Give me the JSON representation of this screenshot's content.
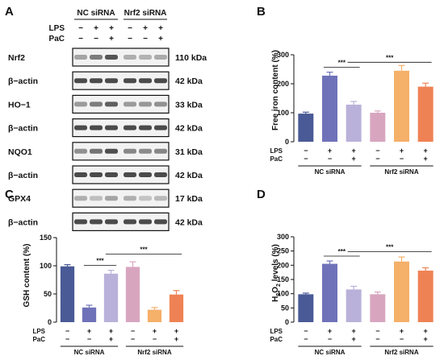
{
  "panel_a": {
    "letter": "A",
    "group_labels": [
      "NC siRNA",
      "Nrf2 siRNA"
    ],
    "row_labels": [
      "LPS",
      "PaC"
    ],
    "treatments": {
      "LPS": [
        "−",
        "+",
        "+",
        "−",
        "+",
        "+"
      ],
      "PaC": [
        "−",
        "−",
        "+",
        "−",
        "−",
        "+"
      ]
    },
    "blots": [
      {
        "protein": "Nrf2",
        "size": "110 kDa",
        "intensity": [
          0.35,
          0.55,
          0.75,
          0.3,
          0.28,
          0.32
        ]
      },
      {
        "protein": "β−actin",
        "size": "42 kDa",
        "intensity": [
          0.8,
          0.8,
          0.8,
          0.8,
          0.8,
          0.8
        ]
      },
      {
        "protein": "HO−1",
        "size": "33 kDa",
        "intensity": [
          0.4,
          0.55,
          0.7,
          0.4,
          0.42,
          0.45
        ]
      },
      {
        "protein": "β−actin",
        "size": "42 kDa",
        "intensity": [
          0.8,
          0.8,
          0.8,
          0.8,
          0.8,
          0.8
        ]
      },
      {
        "protein": "NQO1",
        "size": "31 kDa",
        "intensity": [
          0.45,
          0.6,
          0.78,
          0.5,
          0.48,
          0.5
        ]
      },
      {
        "protein": "β−actin",
        "size": "42 kDa",
        "intensity": [
          0.8,
          0.8,
          0.8,
          0.8,
          0.8,
          0.8
        ]
      },
      {
        "protein": "GPX4",
        "size": "17 kDa",
        "intensity": [
          0.3,
          0.22,
          0.35,
          0.3,
          0.2,
          0.25
        ]
      },
      {
        "protein": "β−actin",
        "size": "42 kDa",
        "intensity": [
          0.8,
          0.8,
          0.8,
          0.8,
          0.8,
          0.8
        ]
      }
    ]
  },
  "colors": [
    "#4a5a96",
    "#6f72b8",
    "#b9b1d9",
    "#d8a5bf",
    "#f5b06a",
    "#ef8254"
  ],
  "chart_data": [
    {
      "type": "bar",
      "letter": "B",
      "ylabel": "Free iron content (%)",
      "ylim": [
        0,
        300
      ],
      "yticks": [
        0,
        100,
        200,
        300
      ],
      "values": [
        97,
        228,
        128,
        100,
        245,
        190
      ],
      "errors": [
        5,
        12,
        11,
        6,
        18,
        12
      ],
      "lps": [
        "−",
        "+",
        "+",
        "−",
        "+",
        "+"
      ],
      "pac": [
        "−",
        "−",
        "+",
        "−",
        "−",
        "+"
      ],
      "groups": [
        "NC siRNA",
        "Nrf2 siRNA"
      ],
      "row_labels": [
        "LPS",
        "PaC"
      ],
      "significance": [
        {
          "from": 1,
          "to": 2,
          "label": "***"
        },
        {
          "from": 2,
          "to": 5,
          "label": "***"
        }
      ]
    },
    {
      "type": "bar",
      "letter": "C",
      "ylabel": "GSH content (%)",
      "ylim": [
        0,
        150
      ],
      "yticks": [
        0,
        50,
        100,
        150
      ],
      "values": [
        99,
        26,
        86,
        98,
        22,
        49
      ],
      "errors": [
        3,
        4,
        6,
        9,
        4,
        7
      ],
      "lps": [
        "−",
        "+",
        "+",
        "−",
        "+",
        "+"
      ],
      "pac": [
        "−",
        "−",
        "+",
        "−",
        "−",
        "+"
      ],
      "groups": [
        "NC siRNA",
        "Nrf2 siRNA"
      ],
      "row_labels": [
        "LPS",
        "PaC"
      ],
      "significance": [
        {
          "from": 1,
          "to": 2,
          "label": "***"
        },
        {
          "from": 2,
          "to": 5,
          "label": "***"
        }
      ]
    },
    {
      "type": "bar",
      "letter": "D",
      "ylabel": "H2O2 levels (%)",
      "ylim": [
        0,
        300
      ],
      "yticks": [
        0,
        50,
        100,
        150,
        200,
        250,
        300
      ],
      "values": [
        98,
        205,
        115,
        98,
        213,
        181
      ],
      "errors": [
        4,
        10,
        11,
        8,
        16,
        10
      ],
      "lps": [
        "−",
        "+",
        "+",
        "−",
        "+",
        "+"
      ],
      "pac": [
        "−",
        "−",
        "+",
        "−",
        "−",
        "+"
      ],
      "groups": [
        "NC siRNA",
        "Nrf2 siRNA"
      ],
      "row_labels": [
        "LPS",
        "PaC"
      ],
      "significance": [
        {
          "from": 1,
          "to": 2,
          "label": "***"
        },
        {
          "from": 2,
          "to": 5,
          "label": "***"
        }
      ]
    }
  ]
}
